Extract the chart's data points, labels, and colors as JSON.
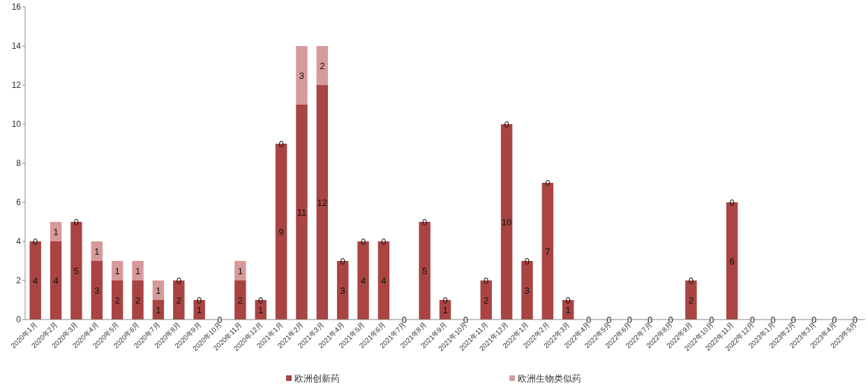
{
  "chart_data": {
    "type": "bar",
    "stacked": true,
    "data_labels": true,
    "legend": "bottom",
    "grid": false,
    "categories": [
      "2020年1月",
      "2020年2月",
      "2020年3月",
      "2020年4月",
      "2020年5月",
      "2020年6月",
      "2020年7月",
      "2020年8月",
      "2020年9月",
      "2020年10月",
      "2020年11月",
      "2020年12月",
      "2021年1月",
      "2021年2月",
      "2021年3月",
      "2021年4月",
      "2021年5月",
      "2021年6月",
      "2021年7月",
      "2021年8月",
      "2021年9月",
      "2021年10月",
      "2021年11月",
      "2021年12月",
      "2022年1月",
      "2022年2月",
      "2022年3月",
      "2022年4月",
      "2022年5月",
      "2022年6月",
      "2022年7月",
      "2022年8月",
      "2022年9月",
      "2022年10月",
      "2022年11月",
      "2022年12月",
      "2023年1月",
      "2023年2月",
      "2023年3月",
      "2023年4月",
      "2023年5月"
    ],
    "ylim": [
      0,
      16
    ],
    "yticks": [
      0,
      2,
      4,
      6,
      8,
      10,
      12,
      14,
      16
    ],
    "series": [
      {
        "name": "欧洲创新药",
        "color": "#a94442",
        "values": [
          4,
          4,
          5,
          3,
          2,
          2,
          1,
          2,
          1,
          0,
          2,
          1,
          9,
          11,
          12,
          3,
          4,
          4,
          0,
          5,
          1,
          0,
          2,
          10,
          3,
          7,
          1,
          0,
          0,
          0,
          0,
          0,
          2,
          0,
          6,
          0,
          0,
          0,
          0,
          0,
          0
        ]
      },
      {
        "name": "欧洲生物类似药",
        "color": "#d79a9b",
        "values": [
          0,
          1,
          0,
          1,
          1,
          1,
          1,
          0,
          0,
          0,
          1,
          0,
          0,
          3,
          2,
          0,
          0,
          0,
          0,
          0,
          0,
          0,
          0,
          0,
          0,
          0,
          0,
          0,
          0,
          0,
          0,
          0,
          0,
          0,
          0,
          0,
          0,
          0,
          0,
          0,
          0
        ],
        "value_labels": [
          "0",
          "1",
          "0",
          "1",
          "1",
          "1",
          "1",
          "0",
          "0",
          null,
          "1",
          "0",
          "0",
          "3",
          "2",
          "0",
          "0",
          "0",
          null,
          "0",
          "0",
          null,
          "0",
          "0",
          "0",
          "0",
          "0",
          null,
          null,
          null,
          null,
          null,
          "0",
          null,
          "0",
          null,
          null,
          null,
          null,
          null,
          null
        ]
      }
    ]
  }
}
